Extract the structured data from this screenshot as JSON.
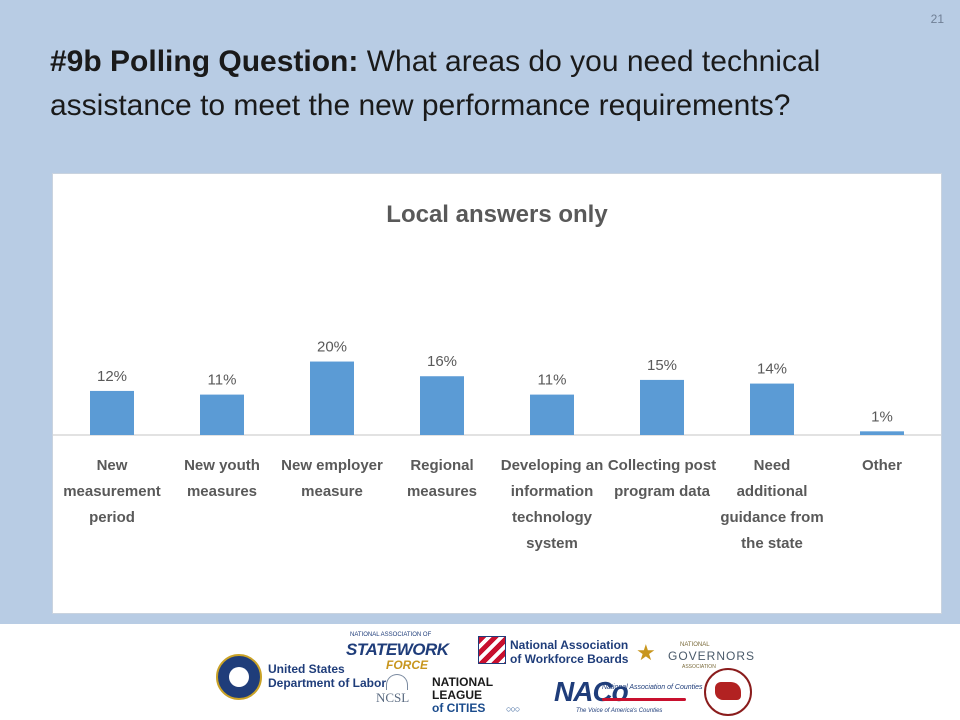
{
  "slide": {
    "number": "21",
    "title_bold": "#9b Polling Question:",
    "title_rest": "What areas do you need technical assistance to meet the new performance requirements?"
  },
  "chart_data": {
    "type": "bar",
    "title": "Local answers only",
    "categories": [
      [
        "New",
        "measurement",
        "period"
      ],
      [
        "New youth",
        "measures"
      ],
      [
        "New employer",
        "measure"
      ],
      [
        "Regional",
        "measures"
      ],
      [
        "Developing an",
        "information",
        "technology",
        "system"
      ],
      [
        "Collecting post",
        "program data"
      ],
      [
        "Need",
        "additional",
        "guidance from",
        "the state"
      ],
      [
        "Other"
      ]
    ],
    "values": [
      12,
      11,
      20,
      16,
      11,
      15,
      14,
      1
    ],
    "value_labels": [
      "12%",
      "11%",
      "20%",
      "16%",
      "11%",
      "15%",
      "14%",
      "1%"
    ],
    "ylim": [
      0,
      55
    ],
    "bar_color": "#5b9bd5",
    "xlabel": "",
    "ylabel": "",
    "grid": false,
    "legend": "none"
  },
  "footer": {
    "dol": [
      "United States",
      "Department of Labor"
    ],
    "nasw": {
      "small": "NATIONAL ASSOCIATION OF",
      "main": "STATEWORK",
      "sub": "FORCE"
    },
    "nawb": [
      "National Association",
      "of Workforce Boards"
    ],
    "nga": {
      "small": "NATIONAL",
      "main": "GOVERNORS",
      "sub": "ASSOCIATION"
    },
    "ncsl": {
      "main": "NCSL"
    },
    "nlc": [
      "NATIONAL",
      "LEAGUE",
      "of CITIES"
    ],
    "naco": {
      "main": "NACo",
      "sub": "National Association of Counties",
      "tag": "The Voice of America's Counties"
    }
  }
}
